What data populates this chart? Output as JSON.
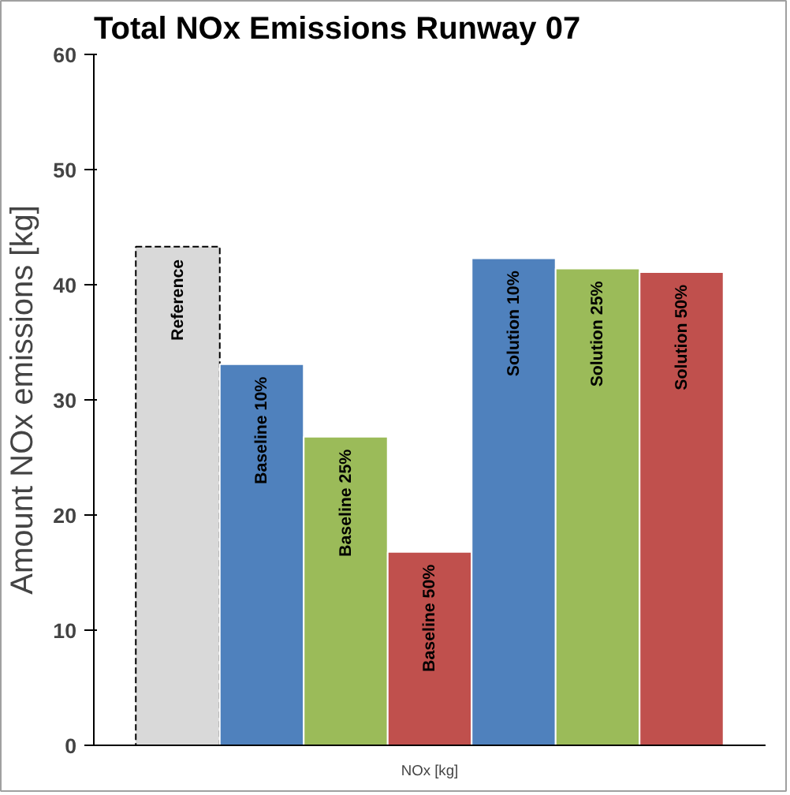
{
  "chart_data": {
    "type": "bar",
    "title": "Total NOx Emissions Runway 07",
    "ylabel": "Amount NOx emissions [kg]",
    "categories": [
      "NOx [kg]"
    ],
    "series": [
      {
        "name": "Reference",
        "color": "#d9d9d9",
        "line_style": "dashed",
        "values": [
          43.3
        ]
      },
      {
        "name": "Baseline 10%",
        "color": "#4f81bd",
        "values": [
          33.1
        ]
      },
      {
        "name": "Baseline 25%",
        "color": "#9bbb59",
        "values": [
          26.8
        ]
      },
      {
        "name": "Baseline 50%",
        "color": "#c0504d",
        "values": [
          16.8
        ]
      },
      {
        "name": "Solution 10%",
        "color": "#4f81bd",
        "values": [
          42.3
        ]
      },
      {
        "name": "Solution 25%",
        "color": "#9bbb59",
        "values": [
          41.4
        ]
      },
      {
        "name": "Solution 50%",
        "color": "#c0504d",
        "values": [
          41.1
        ]
      }
    ],
    "ylim": [
      0,
      60
    ],
    "yticks": [
      0,
      10,
      20,
      30,
      40,
      50,
      60
    ],
    "grid": false
  }
}
